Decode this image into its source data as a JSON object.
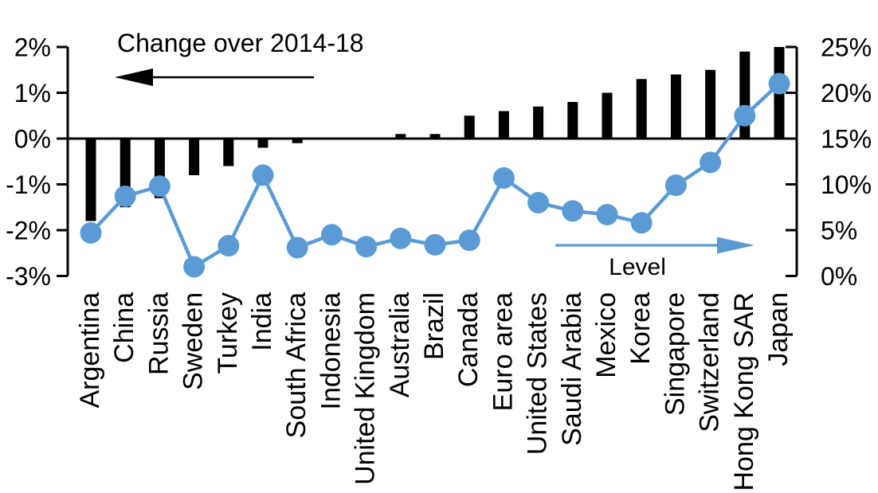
{
  "chart_data": {
    "type": "combo-bar-line",
    "categories": [
      "Argentina",
      "China",
      "Russia",
      "Sweden",
      "Turkey",
      "India",
      "South Africa",
      "Indonesia",
      "United Kingdom",
      "Australia",
      "Brazil",
      "Canada",
      "Euro area",
      "United States",
      "Saudi Arabia",
      "Mexico",
      "Korea",
      "Singapore",
      "Switzerland",
      "Hong Kong SAR",
      "Japan"
    ],
    "series": [
      {
        "name": "Change over 2014-18",
        "type": "bar",
        "axis": "left",
        "color": "#000000",
        "values": [
          -1.8,
          -1.5,
          -1.3,
          -0.8,
          -0.6,
          -0.2,
          -0.1,
          0,
          0,
          0.1,
          0.1,
          0.5,
          0.6,
          0.7,
          0.8,
          1.0,
          1.3,
          1.4,
          1.5,
          1.9,
          2.0
        ]
      },
      {
        "name": "Level",
        "type": "line",
        "axis": "right",
        "color": "#5B9BD5",
        "values": [
          4.7,
          8.7,
          9.8,
          1.0,
          3.3,
          11.0,
          3.1,
          4.5,
          3.2,
          4.1,
          3.4,
          3.9,
          10.7,
          8.0,
          7.1,
          6.7,
          5.8,
          9.9,
          12.4,
          17.5,
          21.0
        ]
      }
    ],
    "left_axis": {
      "min": -3,
      "max": 2,
      "step": 1,
      "unit": "%",
      "tick_labels": [
        "2%",
        "1%",
        "0%",
        "-1%",
        "-2%",
        "-3%"
      ]
    },
    "right_axis": {
      "min": 0,
      "max": 25,
      "step": 5,
      "unit": "%",
      "tick_labels": [
        "25%",
        "20%",
        "15%",
        "10%",
        "5%",
        "0%"
      ]
    },
    "annotations": [
      {
        "text": "Change over 2014-18",
        "arrow": "left",
        "color": "#000000"
      },
      {
        "text": "Level",
        "arrow": "right",
        "color": "#5B9BD5"
      }
    ],
    "grid": false,
    "legend_position": "none"
  }
}
